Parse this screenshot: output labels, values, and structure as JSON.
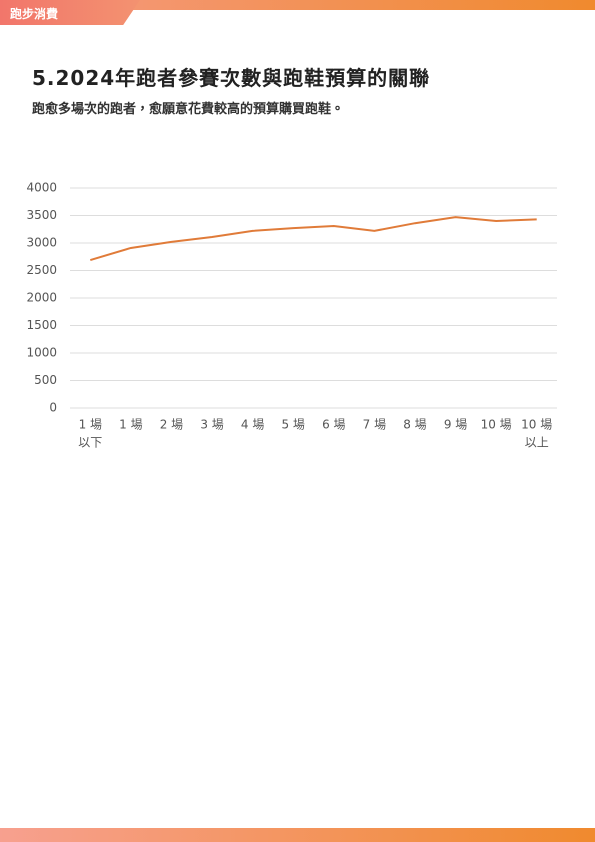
{
  "header": {
    "tag": "跑步消費"
  },
  "chart_data": {
    "type": "line",
    "title": "5.2024年跑者參賽次數與跑鞋預算的關聯",
    "subtitle": "跑愈多場次的跑者，愈願意花費較高的預算購買跑鞋。",
    "categories": [
      [
        "1 場",
        "以下"
      ],
      [
        "1 場"
      ],
      [
        "2 場"
      ],
      [
        "3 場"
      ],
      [
        "4 場"
      ],
      [
        "5 場"
      ],
      [
        "6 場"
      ],
      [
        "7 場"
      ],
      [
        "8 場"
      ],
      [
        "9 場"
      ],
      [
        "10 場"
      ],
      [
        "10 場",
        "以上"
      ]
    ],
    "values": [
      2690,
      2910,
      3020,
      3110,
      3220,
      3270,
      3310,
      3220,
      3360,
      3470,
      3400,
      3430
    ],
    "color": "#e07b39",
    "ylim": [
      0,
      4000
    ],
    "yticks": [
      0,
      500,
      1000,
      1500,
      2000,
      2500,
      3000,
      3500,
      4000
    ],
    "grid": true
  }
}
